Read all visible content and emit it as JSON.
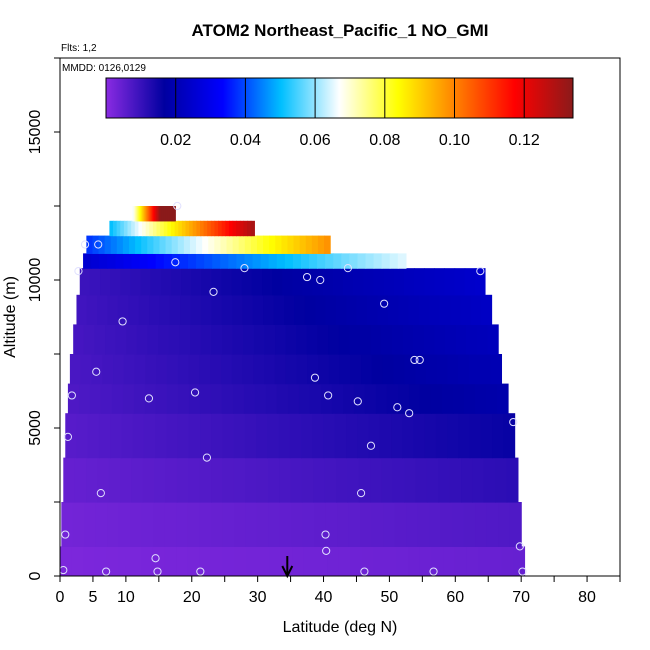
{
  "chart_data": {
    "type": "heatmap",
    "title": "ATOM2 Northeast_Pacific_1 NO_GMI",
    "annotations": [
      "Flts: 1,2",
      "MMDD: 0126,0129"
    ],
    "xlabel": "Latitude (deg N)",
    "ylabel": "Altitude (m)",
    "xlim": [
      0,
      85
    ],
    "ylim": [
      0,
      17500
    ],
    "x_ticks": [
      0,
      5,
      10,
      20,
      30,
      40,
      50,
      60,
      70,
      80
    ],
    "y_ticks": [
      0,
      5000,
      10000,
      15000
    ],
    "grid": false,
    "colorbar": {
      "location": "top-inside",
      "range": [
        0,
        0.134
      ],
      "ticks": [
        0.02,
        0.04,
        0.06,
        0.08,
        0.1,
        0.12
      ],
      "tick_labels": [
        "0.02",
        "0.04",
        "0.06",
        "0.08",
        "0.10",
        "0.12"
      ],
      "colors": [
        "#8a2be2",
        "#0000a0",
        "#0000ff",
        "#00bfff",
        "#ffffff",
        "#ffff00",
        "#ff7f00",
        "#ff0000",
        "#8b1a1a"
      ]
    },
    "marker": {
      "type": "arrow",
      "x": 34.5,
      "label": ""
    },
    "layers": [
      {
        "alt_min": 0,
        "alt_max": 1000,
        "lat_min": 0,
        "lat_max": 70.5,
        "value": 0.003
      },
      {
        "alt_min": 1000,
        "alt_max": 2500,
        "lat_min": 0.2,
        "lat_max": 70,
        "value": 0.005
      },
      {
        "alt_min": 2500,
        "alt_max": 4000,
        "lat_min": 0.5,
        "lat_max": 69.5,
        "value": 0.008
      },
      {
        "alt_min": 4000,
        "alt_max": 5500,
        "lat_min": 0.8,
        "lat_max": 69,
        "value": 0.011
      },
      {
        "alt_min": 5500,
        "alt_max": 6500,
        "lat_min": 1.2,
        "lat_max": 68,
        "value": 0.013
      },
      {
        "alt_min": 6500,
        "alt_max": 7500,
        "lat_min": 1.5,
        "lat_max": 67,
        "value": 0.014
      },
      {
        "alt_min": 7500,
        "alt_max": 8500,
        "lat_min": 2,
        "lat_max": 66.5,
        "value": 0.015
      },
      {
        "alt_min": 8500,
        "alt_max": 9500,
        "lat_min": 2.5,
        "lat_max": 65.5,
        "value": 0.016
      },
      {
        "alt_min": 9500,
        "alt_max": 10400,
        "lat_min": 3,
        "lat_max": 64.5,
        "value": 0.017
      },
      {
        "alt_min": 10400,
        "alt_max": 10900,
        "lat_min": 3.5,
        "lat_max": 52.5,
        "value": 0.045
      },
      {
        "alt_min": 10900,
        "alt_max": 11500,
        "lat_min": 4,
        "lat_max": 41,
        "value": 0.068
      },
      {
        "alt_min": 11500,
        "alt_max": 12000,
        "lat_min": 7.5,
        "lat_max": 29.5,
        "value": 0.09
      },
      {
        "alt_min": 12000,
        "alt_max": 12500,
        "lat_min": 11,
        "lat_max": 17.5,
        "value": 0.118
      }
    ],
    "points": [
      {
        "x": 0.5,
        "y": 200
      },
      {
        "x": 0.8,
        "y": 1400
      },
      {
        "x": 1.2,
        "y": 4700
      },
      {
        "x": 1.8,
        "y": 6100
      },
      {
        "x": 2.8,
        "y": 10300
      },
      {
        "x": 3.8,
        "y": 11200
      },
      {
        "x": 5.5,
        "y": 6900
      },
      {
        "x": 5.8,
        "y": 11200
      },
      {
        "x": 6.2,
        "y": 2800
      },
      {
        "x": 7,
        "y": 150
      },
      {
        "x": 9.5,
        "y": 8600
      },
      {
        "x": 13.5,
        "y": 6000
      },
      {
        "x": 14.5,
        "y": 600
      },
      {
        "x": 14.8,
        "y": 150
      },
      {
        "x": 17.5,
        "y": 10600
      },
      {
        "x": 17.8,
        "y": 12500
      },
      {
        "x": 20.5,
        "y": 6200
      },
      {
        "x": 21.3,
        "y": 150
      },
      {
        "x": 22.3,
        "y": 4000
      },
      {
        "x": 23.3,
        "y": 9600
      },
      {
        "x": 28,
        "y": 10400
      },
      {
        "x": 37.5,
        "y": 10100
      },
      {
        "x": 38.7,
        "y": 6700
      },
      {
        "x": 39.5,
        "y": 10000
      },
      {
        "x": 40.3,
        "y": 1400
      },
      {
        "x": 40.4,
        "y": 850
      },
      {
        "x": 40.7,
        "y": 6100
      },
      {
        "x": 43.7,
        "y": 10400
      },
      {
        "x": 45.2,
        "y": 5900
      },
      {
        "x": 45.7,
        "y": 2800
      },
      {
        "x": 46.2,
        "y": 150
      },
      {
        "x": 47.2,
        "y": 4400
      },
      {
        "x": 49.2,
        "y": 9200
      },
      {
        "x": 51.2,
        "y": 5700
      },
      {
        "x": 53,
        "y": 5500
      },
      {
        "x": 53.8,
        "y": 7300
      },
      {
        "x": 54.6,
        "y": 7300
      },
      {
        "x": 56.7,
        "y": 150
      },
      {
        "x": 63.8,
        "y": 10300
      },
      {
        "x": 68.8,
        "y": 5200
      },
      {
        "x": 69.8,
        "y": 1000
      },
      {
        "x": 70.2,
        "y": 150
      }
    ]
  }
}
